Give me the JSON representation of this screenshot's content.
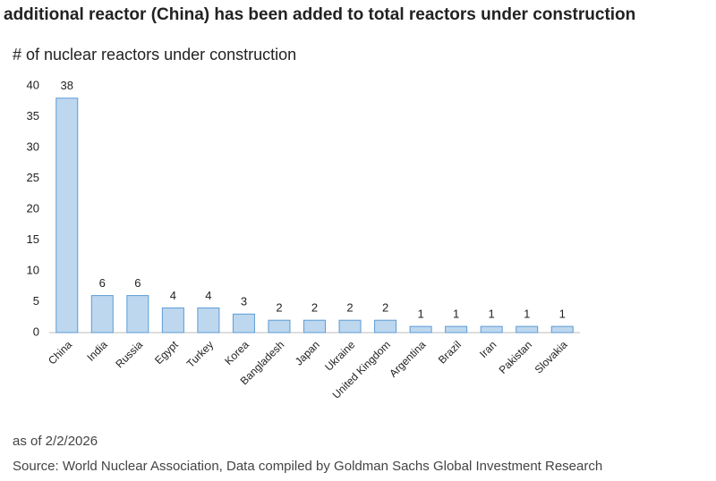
{
  "chart_data": {
    "type": "bar",
    "title": "additional reactor (China) has been added to total reactors under construction",
    "subtitle": "# of nuclear reactors under construction",
    "categories": [
      "China",
      "India",
      "Russia",
      "Egypt",
      "Turkey",
      "Korea",
      "Bangladesh",
      "Japan",
      "Ukraine",
      "United Kingdom",
      "Argentina",
      "Brazil",
      "Iran",
      "Pakistan",
      "Slovakia"
    ],
    "values": [
      38,
      6,
      6,
      4,
      4,
      3,
      2,
      2,
      2,
      2,
      1,
      1,
      1,
      1,
      1
    ],
    "color": "#bdd7ee",
    "ylim": [
      0,
      40
    ],
    "yticks": [
      0,
      5,
      10,
      15,
      20,
      25,
      30,
      35,
      40
    ],
    "grid": false,
    "notes": [
      "as of 2/2/2026",
      "Source: World Nuclear Association, Data compiled by Goldman Sachs Global Investment Research"
    ]
  }
}
